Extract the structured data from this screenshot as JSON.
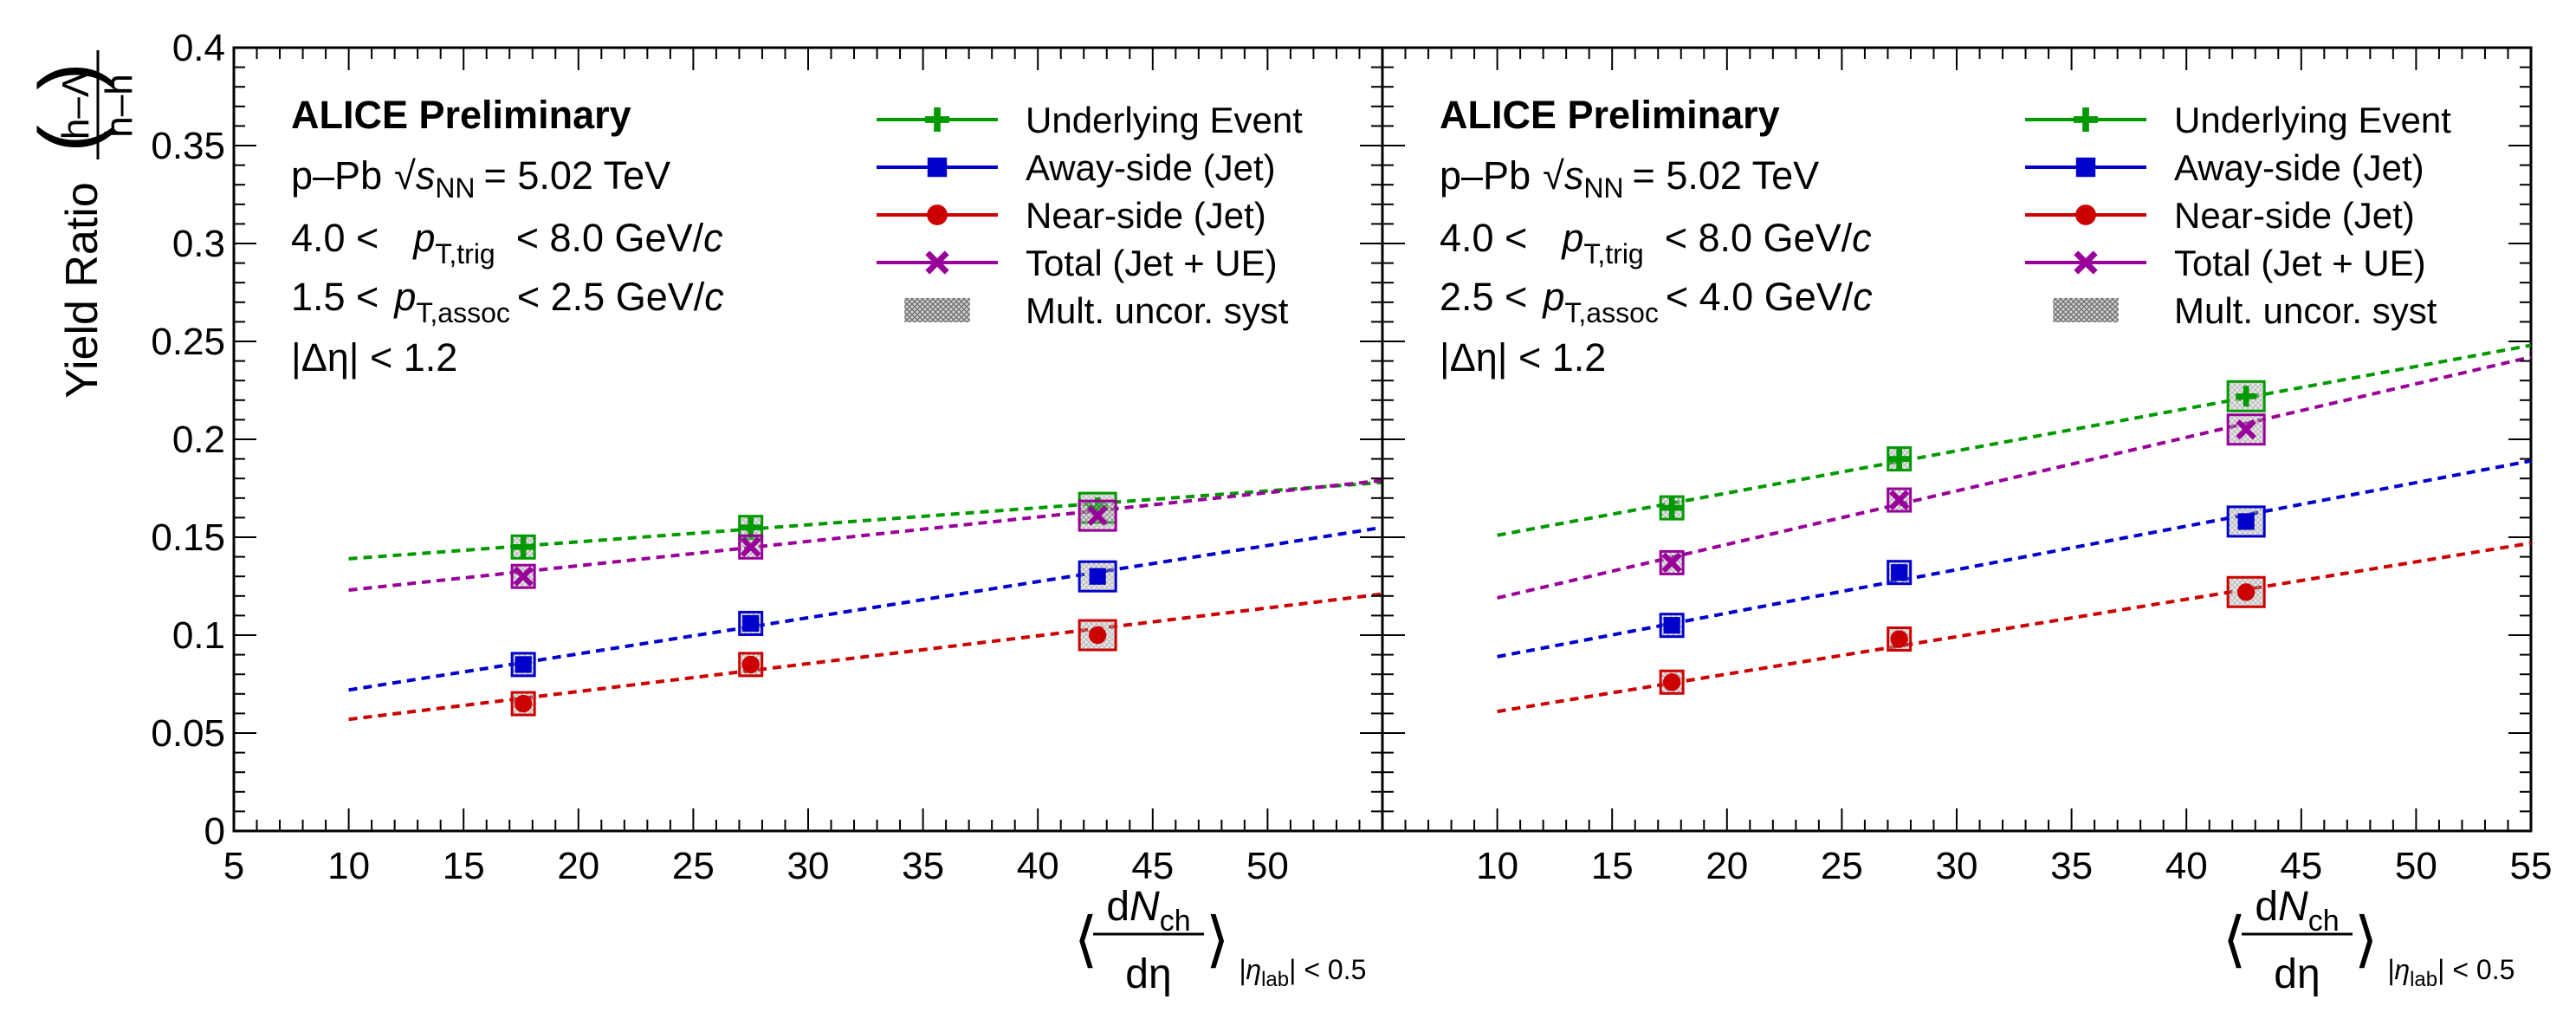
{
  "figure": {
    "ylabel": "Yield Ratio",
    "ylabel_fraction_num": "h–Λ",
    "ylabel_fraction_den": "h–h",
    "xlabel_num_d": "d",
    "xlabel_num_N": "N",
    "xlabel_num_sub": "ch",
    "xlabel_den": "dη",
    "xlabel_subscript_pre": "|η",
    "xlabel_subscript_lab": "lab",
    "xlabel_subscript_post": "| < 0.5",
    "open_angle": "⟨",
    "close_angle": "⟩"
  },
  "legend": [
    {
      "label": "Underlying Event",
      "color": "#009900",
      "marker": "cross"
    },
    {
      "label": "Away-side (Jet)",
      "color": "#0000cc",
      "marker": "square"
    },
    {
      "label": "Near-side (Jet)",
      "color": "#cc0000",
      "marker": "circle"
    },
    {
      "label": "Total (Jet + UE)",
      "color": "#990099",
      "marker": "x"
    },
    {
      "label": "Mult. uncor. syst",
      "color": "#888888",
      "marker": "hatch"
    }
  ],
  "chart_data": [
    {
      "type": "scatter",
      "panel": "left",
      "header": "ALICE Preliminary",
      "system": "p–Pb",
      "sqrt_label": "s",
      "sqrt_sub": "NN",
      "energy": "= 5.02 TeV",
      "trig_low": "4.0 <",
      "trig_sym": "p",
      "trig_sub": "T,trig",
      "trig_high": "< 8.0 GeV/",
      "unit_c": "c",
      "assoc_low": "1.5 <",
      "assoc_sym": "p",
      "assoc_sub": "T,assoc",
      "assoc_high": "< 2.5 GeV/",
      "eta_cut": "|Δη| < 1.2",
      "xlim": [
        5,
        55
      ],
      "ylim": [
        0,
        0.4
      ],
      "xticks": [
        "5",
        "10",
        "15",
        "20",
        "25",
        "30",
        "35",
        "40",
        "45",
        "50"
      ],
      "yticks": [
        "0",
        "0.05",
        "0.1",
        "0.15",
        "0.2",
        "0.25",
        "0.3",
        "0.35",
        "0.4"
      ],
      "x": [
        17.6,
        27.5,
        42.6
      ],
      "series": [
        {
          "name": "Underlying Event",
          "color": "#009900",
          "marker": "cross",
          "values": [
            0.145,
            0.155,
            0.165
          ],
          "fit": [
            10,
            0.139,
            55,
            0.178
          ]
        },
        {
          "name": "Away-side (Jet)",
          "color": "#0000cc",
          "marker": "square",
          "values": [
            0.085,
            0.106,
            0.13
          ],
          "fit": [
            10,
            0.072,
            55,
            0.155
          ]
        },
        {
          "name": "Near-side (Jet)",
          "color": "#cc0000",
          "marker": "circle",
          "values": [
            0.065,
            0.085,
            0.1
          ],
          "fit": [
            10,
            0.057,
            55,
            0.121
          ]
        },
        {
          "name": "Total (Jet + UE)",
          "color": "#990099",
          "marker": "x",
          "values": [
            0.13,
            0.145,
            0.161
          ],
          "fit": [
            10,
            0.123,
            55,
            0.179
          ]
        }
      ]
    },
    {
      "type": "scatter",
      "panel": "right",
      "header": "ALICE Preliminary",
      "system": "p–Pb",
      "sqrt_label": "s",
      "sqrt_sub": "NN",
      "energy": "= 5.02 TeV",
      "trig_low": "4.0 <",
      "trig_sym": "p",
      "trig_sub": "T,trig",
      "trig_high": "< 8.0 GeV/",
      "unit_c": "c",
      "assoc_low": "2.5 <",
      "assoc_sym": "p",
      "assoc_sub": "T,assoc",
      "assoc_high": "< 4.0 GeV/",
      "eta_cut": "|Δη| < 1.2",
      "xlim": [
        5,
        55
      ],
      "ylim": [
        0,
        0.4
      ],
      "xticks": [
        "10",
        "15",
        "20",
        "25",
        "30",
        "35",
        "40",
        "45",
        "50",
        "55"
      ],
      "yticks": [],
      "x": [
        17.6,
        27.5,
        42.6
      ],
      "series": [
        {
          "name": "Underlying Event",
          "color": "#009900",
          "marker": "cross",
          "values": [
            0.165,
            0.19,
            0.222
          ],
          "fit": [
            10,
            0.151,
            55,
            0.248
          ]
        },
        {
          "name": "Away-side (Jet)",
          "color": "#0000cc",
          "marker": "square",
          "values": [
            0.105,
            0.132,
            0.158
          ],
          "fit": [
            10,
            0.089,
            55,
            0.189
          ]
        },
        {
          "name": "Near-side (Jet)",
          "color": "#cc0000",
          "marker": "circle",
          "values": [
            0.076,
            0.098,
            0.122
          ],
          "fit": [
            10,
            0.061,
            55,
            0.147
          ]
        },
        {
          "name": "Total (Jet + UE)",
          "color": "#990099",
          "marker": "x",
          "values": [
            0.137,
            0.169,
            0.205
          ],
          "fit": [
            10,
            0.119,
            55,
            0.242
          ]
        }
      ]
    }
  ]
}
